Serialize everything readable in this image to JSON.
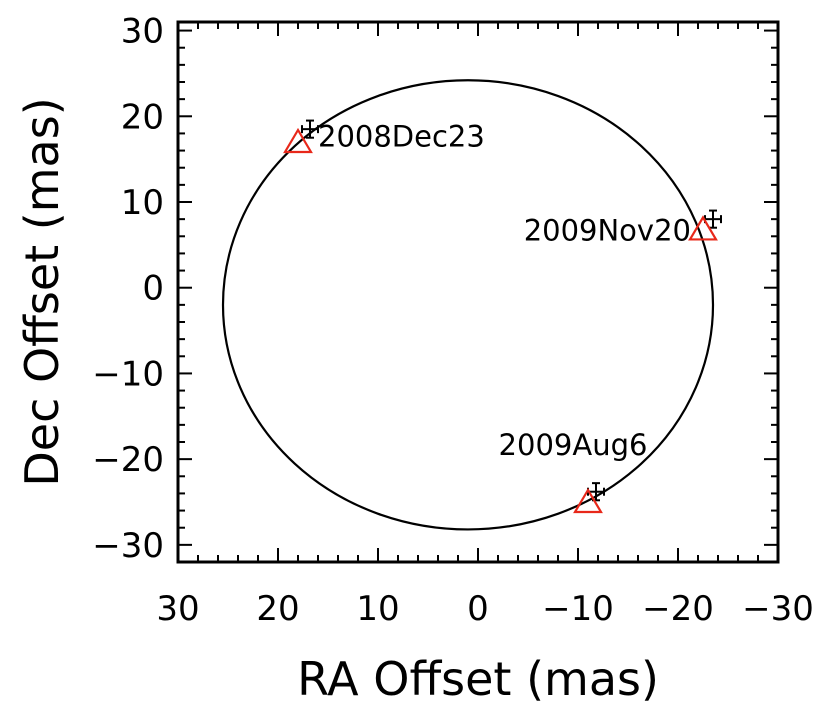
{
  "chart_data": {
    "type": "scatter",
    "title": "",
    "xlabel": "RA Offset (mas)",
    "ylabel": "Dec Offset (mas)",
    "xlim": [
      30,
      -30
    ],
    "ylim": [
      -32,
      31
    ],
    "x_ticks": [
      30,
      20,
      10,
      0,
      -10,
      -20,
      -30
    ],
    "y_ticks": [
      30,
      20,
      10,
      0,
      -10,
      -20,
      -30
    ],
    "x_tick_labels": [
      "30",
      "20",
      "10",
      "0",
      "−10",
      "−20",
      "−30"
    ],
    "y_tick_labels": [
      "30",
      "20",
      "10",
      "0",
      "−10",
      "−20",
      "−30"
    ],
    "grid": false,
    "orbit": {
      "type": "ellipse",
      "center": [
        1,
        -2
      ],
      "semi_axis_ra": 24.5,
      "semi_axis_dec": 26.2,
      "color": "#000000"
    },
    "series": [
      {
        "marker": "triangle",
        "color": "#e8281a",
        "points": [
          {
            "x": 18,
            "y": 17
          },
          {
            "x": -22.5,
            "y": 6.8
          },
          {
            "x": -11,
            "y": -25
          }
        ]
      },
      {
        "marker": "errorbar",
        "color": "#000000",
        "points": [
          {
            "x": 16.8,
            "y": 18.5,
            "xerr": 0.8,
            "yerr": 1.0
          },
          {
            "x": -23.5,
            "y": 8.0,
            "xerr": 0.8,
            "yerr": 1.0
          },
          {
            "x": -11.8,
            "y": -23.8,
            "xerr": 0.8,
            "yerr": 1.0
          }
        ]
      }
    ],
    "annotations": [
      {
        "text": "2008Dec23",
        "x": 16.0,
        "y": 16.5,
        "anchor": "start"
      },
      {
        "text": "2009Nov20",
        "x": -21.3,
        "y": 5.5,
        "anchor": "end"
      },
      {
        "text": "2009Aug6",
        "x": -9.5,
        "y": -19.5,
        "anchor": "middle"
      }
    ]
  }
}
